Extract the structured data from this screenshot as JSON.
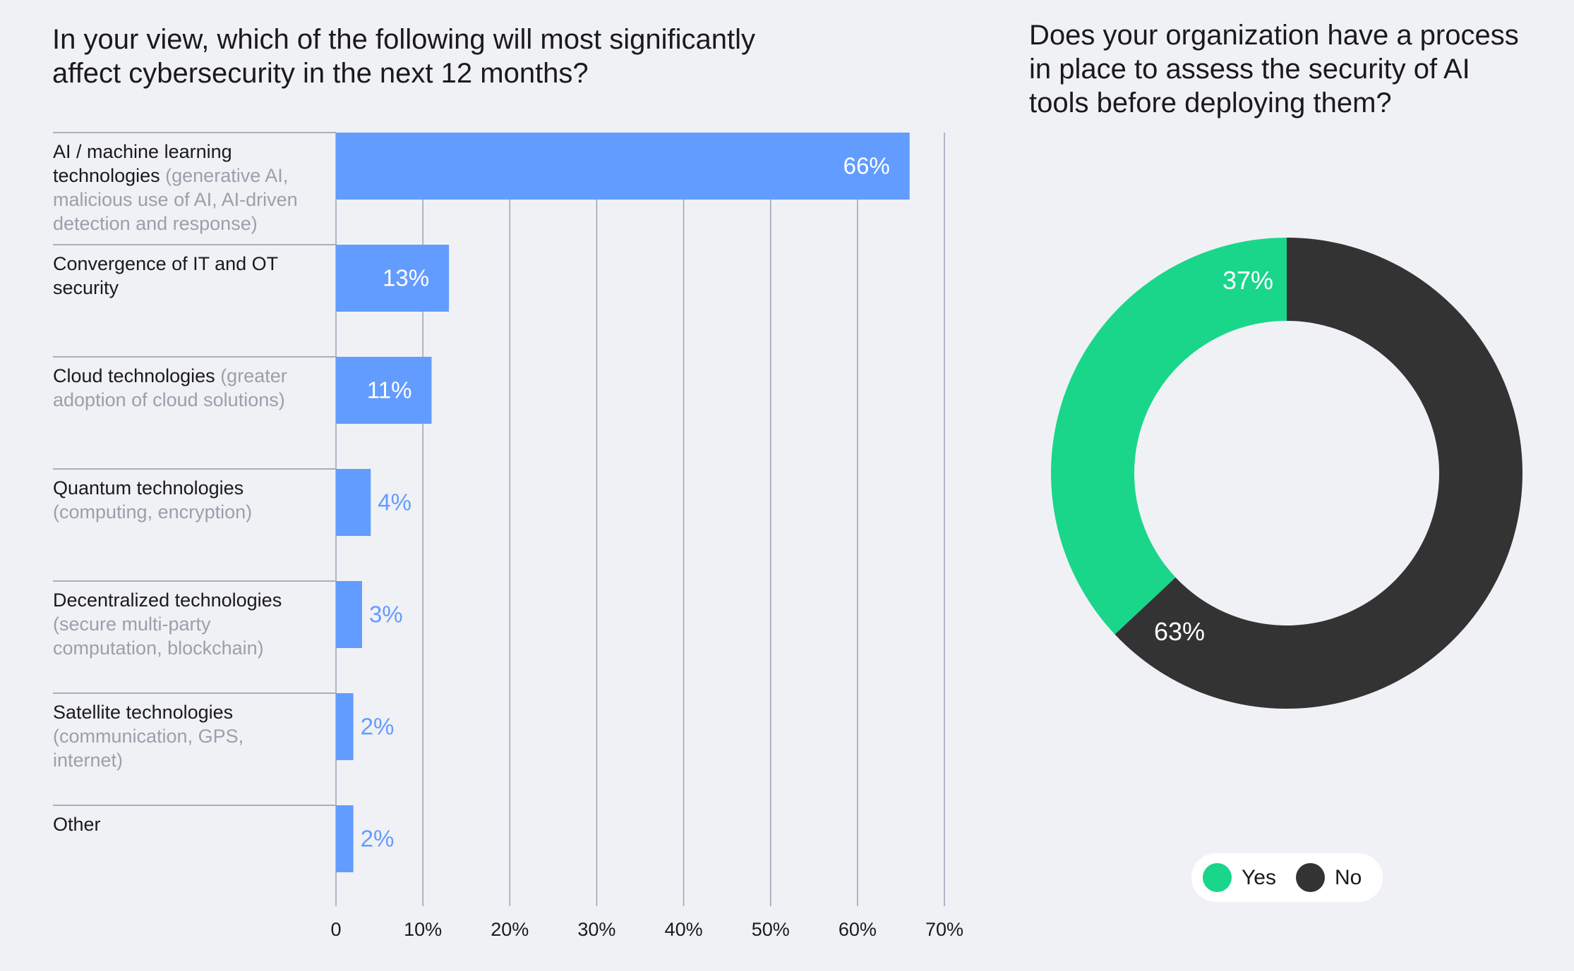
{
  "chart_data": [
    {
      "type": "bar",
      "orientation": "horizontal",
      "title": "In your view, which of the following will most significantly affect cybersecurity in the next 12 months?",
      "categories": [
        {
          "main": "AI / machine learning technologies",
          "sub": "(generative AI, malicious use of AI, AI-driven detection and response)"
        },
        {
          "main": "Convergence of IT and OT security",
          "sub": ""
        },
        {
          "main": "Cloud technologies",
          "sub": "(greater adoption of cloud solutions)"
        },
        {
          "main": "Quantum technologies",
          "sub": "(computing, encryption)"
        },
        {
          "main": "Decentralized technologies",
          "sub": "(secure multi-party computation, blockchain)"
        },
        {
          "main": "Satellite technologies",
          "sub": "(communication, GPS, internet)"
        },
        {
          "main": "Other",
          "sub": ""
        }
      ],
      "values": [
        66,
        13,
        11,
        4,
        3,
        2,
        2
      ],
      "data_labels": [
        "66%",
        "13%",
        "11%",
        "4%",
        "3%",
        "2%",
        "2%"
      ],
      "xlim": [
        0,
        70
      ],
      "x_ticks": [
        "0",
        "10%",
        "20%",
        "30%",
        "40%",
        "50%",
        "60%",
        "70%"
      ],
      "grid": true,
      "color": "#639cff"
    },
    {
      "type": "pie",
      "variant": "donut",
      "title": "Does your organization have a process in place to assess the security of AI tools before deploying them?",
      "slices": [
        {
          "name": "Yes",
          "value": 37,
          "label": "37%",
          "color": "#1ad68a"
        },
        {
          "name": "No",
          "value": 63,
          "label": "63%",
          "color": "#333333"
        }
      ],
      "legend": "bottom"
    }
  ]
}
